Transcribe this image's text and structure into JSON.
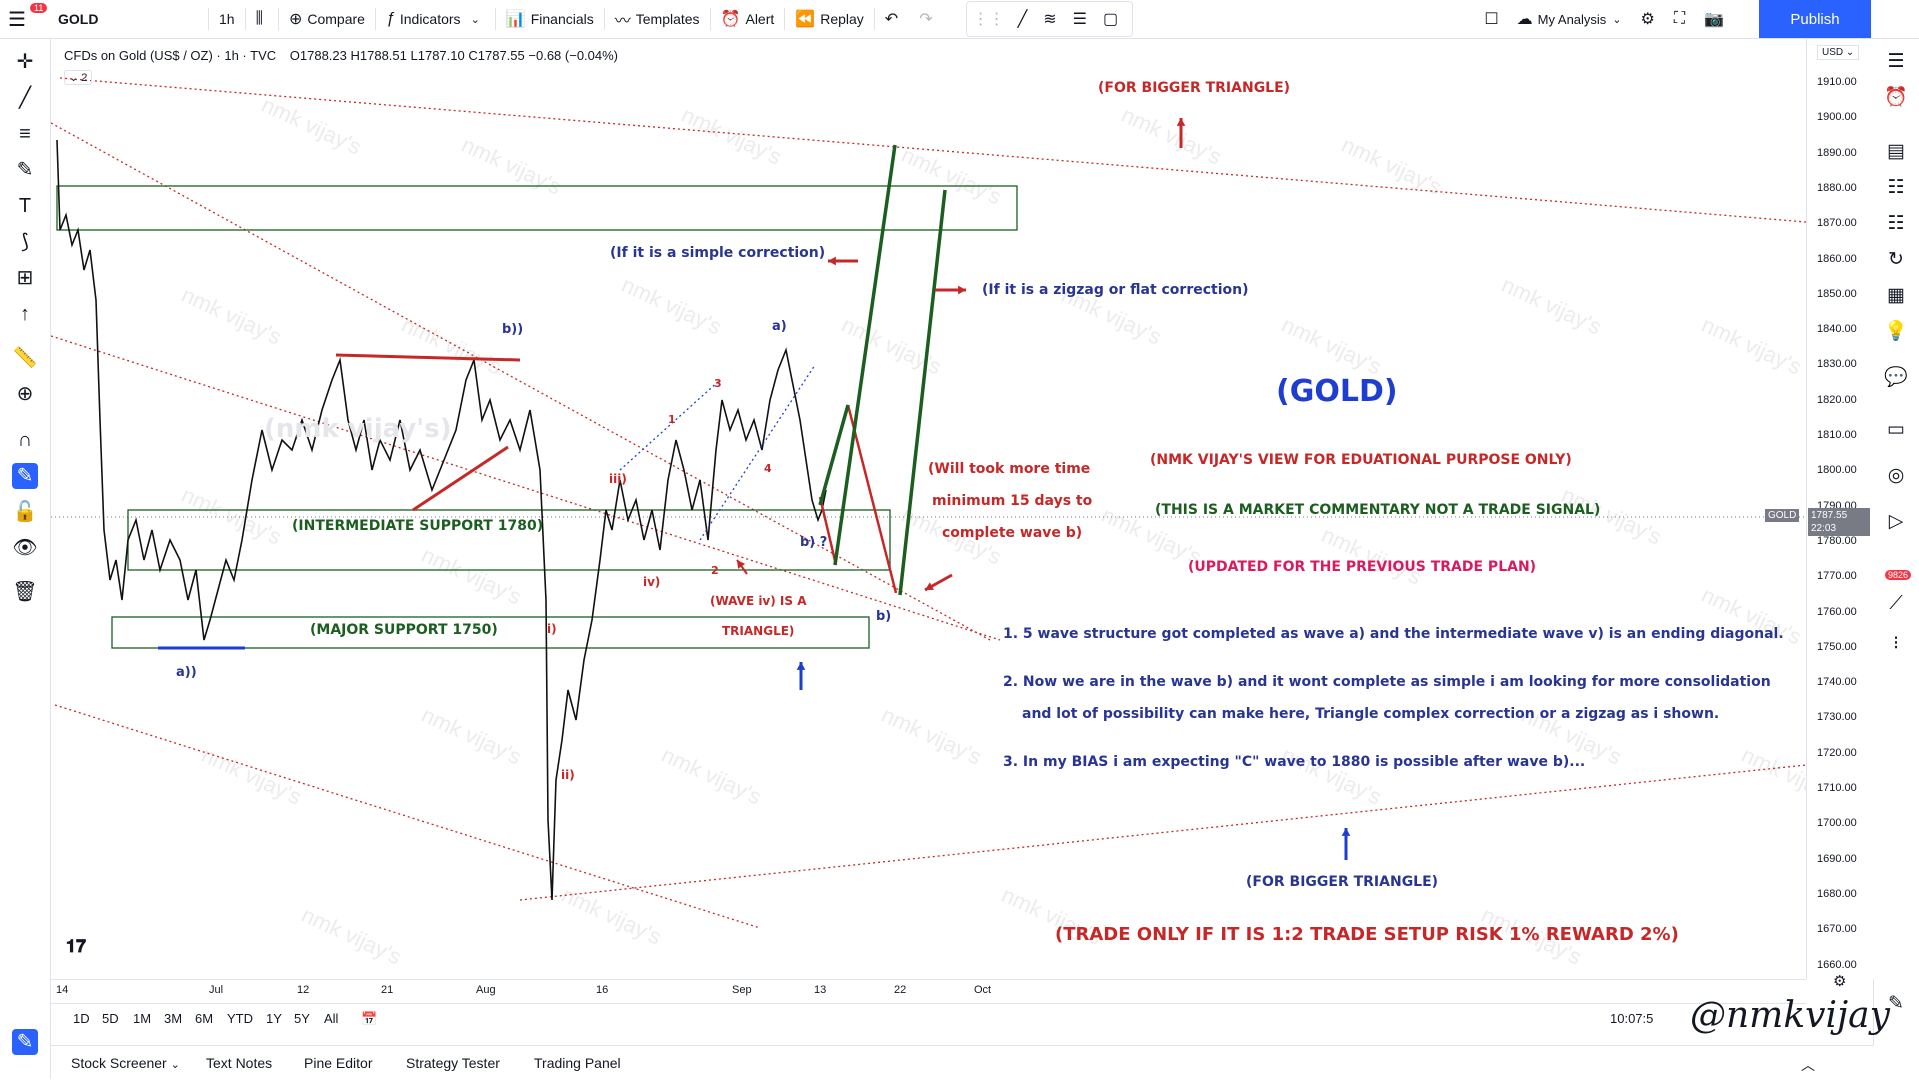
{
  "topbar": {
    "symbol": "GOLD",
    "notification_count": "11",
    "interval": "1h",
    "compare": "Compare",
    "indicators": "Indicators",
    "financials": "Financials",
    "templates": "Templates",
    "alert": "Alert",
    "replay": "Replay",
    "layout_name": "My Analysis",
    "publish": "Publish"
  },
  "legend": {
    "title": "CFDs on Gold (US$ / OZ) · 1h · TVC",
    "open": "O1788.23",
    "high": "H1788.51",
    "low": "L1787.10",
    "close": "C1787.55",
    "change": "−0.68 (−0.04%)",
    "collapse_count": "2"
  },
  "price_axis": {
    "currency": "USD",
    "labels": [
      "1910.00",
      "1900.00",
      "1890.00",
      "1880.00",
      "1870.00",
      "1860.00",
      "1850.00",
      "1840.00",
      "1830.00",
      "1820.00",
      "1810.00",
      "1800.00",
      "1790.00",
      "1780.00",
      "1770.00",
      "1760.00",
      "1750.00",
      "1740.00",
      "1730.00",
      "1720.00",
      "1710.00",
      "1700.00",
      "1690.00",
      "1680.00",
      "1670.00",
      "1660.00"
    ],
    "current_symbol": "GOLD",
    "current_price": "1787.55",
    "countdown": "22:03"
  },
  "time_axis": {
    "labels": [
      "14",
      "Jul",
      "12",
      "21",
      "Aug",
      "16",
      "Sep",
      "13",
      "22",
      "Oct"
    ]
  },
  "bottombar": {
    "ranges": [
      "1D",
      "5D",
      "1M",
      "3M",
      "6M",
      "YTD",
      "1Y",
      "5Y",
      "All"
    ],
    "time": "10:07:5"
  },
  "footer": {
    "tabs": [
      "Stock Screener",
      "Text Notes",
      "Pine Editor",
      "Strategy Tester",
      "Trading Panel"
    ]
  },
  "rightbar": {
    "badge": "9826"
  },
  "annotations": {
    "bigger_triangle_top": "(FOR BIGGER TRIANGLE)",
    "simple_correction": "(If it is a simple correction)",
    "zigzag_correction": "(If it is a zigzag or flat correction)",
    "gold": "(GOLD)",
    "view": "(NMK VIJAY'S VIEW FOR EDUATIONAL PURPOSE ONLY)",
    "commentary": "(THIS IS A MARKET COMMENTARY NOT A TRADE SIGNAL)",
    "updated": "(UPDATED FOR THE PREVIOUS TRADE PLAN)",
    "will_take_1": "(Will took more time",
    "will_take_2": "minimum 15 days to",
    "will_take_3": "complete wave b)",
    "point1": "1.  5 wave structure got completed as wave a) and the intermediate wave v) is an ending diagonal.",
    "point2a": "2.  Now we are in the wave b) and it wont complete as simple i am looking for more consolidation",
    "point2b": "and lot of possibility can make here, Triangle complex correction or a zigzag as i shown.",
    "point3": "3.  In my BIAS i am expecting \"C\" wave to 1880 is possible after wave b)...",
    "bigger_triangle_bottom": "(FOR BIGGER TRIANGLE)",
    "trade_only": "(TRADE ONLY IF IT IS 1:2 TRADE SETUP RISK 1% REWARD 2%)",
    "intermediate_support": "(INTERMEDIATE SUPPORT 1780)",
    "major_support": "(MAJOR SUPPORT 1750)",
    "wave_iv_1": "(WAVE iv) IS A",
    "wave_iv_2": "TRIANGLE)",
    "faded_label": "(nmk vijay's)",
    "wave_labels": {
      "b_double": "b))",
      "a_double": "a))",
      "a_single": "a)",
      "b_single": "b)",
      "b_q": "b) ?",
      "i": "i)",
      "ii": "ii)",
      "iii": "iii)",
      "iv": "iv)",
      "n1": "1",
      "n2": "2",
      "n3": "3",
      "n4": "4"
    },
    "watermark": "nmk vijay's",
    "signature": "@nmkvijay"
  },
  "colors": {
    "red": "#c62828",
    "blue": "#283593",
    "green": "#1b5e20",
    "magenta": "#d81b60",
    "accent": "#2962ff"
  }
}
